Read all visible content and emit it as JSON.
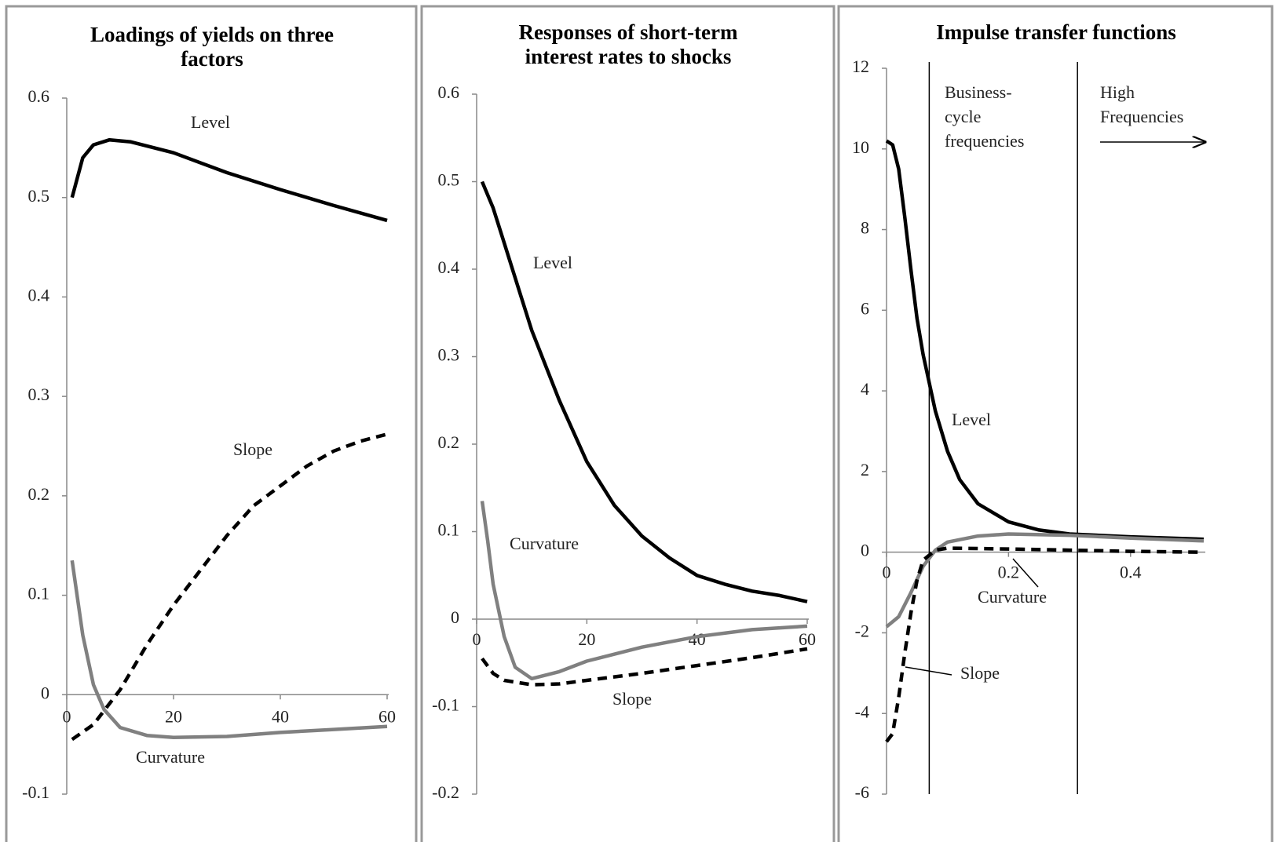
{
  "chart_data": [
    {
      "type": "line",
      "title": "Loadings of yields on three factors",
      "xlim": [
        0,
        60
      ],
      "xticks": [
        0,
        20,
        40,
        60
      ],
      "ylim": [
        -0.1,
        0.6
      ],
      "yticks": [
        -0.1,
        0,
        0.1,
        0.2,
        0.3,
        0.4,
        0.5,
        0.6
      ],
      "series": [
        {
          "name": "Level",
          "color": "#000000",
          "dashed": false,
          "x": [
            1,
            3,
            5,
            8,
            12,
            20,
            30,
            40,
            50,
            60
          ],
          "values": [
            0.5,
            0.54,
            0.553,
            0.558,
            0.556,
            0.545,
            0.525,
            0.508,
            0.492,
            0.477
          ]
        },
        {
          "name": "Slope",
          "color": "#000000",
          "dashed": true,
          "x": [
            1,
            5,
            10,
            15,
            20,
            25,
            30,
            35,
            40,
            45,
            50,
            55,
            60
          ],
          "values": [
            -0.045,
            -0.03,
            0.005,
            0.05,
            0.09,
            0.125,
            0.16,
            0.19,
            0.21,
            0.23,
            0.245,
            0.255,
            0.262
          ]
        },
        {
          "name": "Curvature",
          "color": "#808080",
          "dashed": false,
          "x": [
            1,
            3,
            5,
            7,
            10,
            15,
            20,
            30,
            40,
            50,
            60
          ],
          "values": [
            0.135,
            0.06,
            0.01,
            -0.015,
            -0.033,
            -0.041,
            -0.043,
            -0.042,
            -0.038,
            -0.035,
            -0.032
          ]
        }
      ]
    },
    {
      "type": "line",
      "title": "Responses of short-term interest rates to shocks",
      "xlim": [
        0,
        60
      ],
      "xticks": [
        0,
        20,
        40,
        60
      ],
      "ylim": [
        -0.2,
        0.6
      ],
      "yticks": [
        -0.2,
        -0.1,
        0,
        0.1,
        0.2,
        0.3,
        0.4,
        0.5,
        0.6
      ],
      "series": [
        {
          "name": "Level",
          "color": "#000000",
          "dashed": false,
          "x": [
            1,
            3,
            5,
            8,
            10,
            15,
            20,
            25,
            30,
            35,
            40,
            45,
            50,
            55,
            60
          ],
          "values": [
            0.5,
            0.47,
            0.43,
            0.37,
            0.33,
            0.25,
            0.18,
            0.13,
            0.095,
            0.07,
            0.05,
            0.04,
            0.032,
            0.027,
            0.02
          ]
        },
        {
          "name": "Curvature",
          "color": "#808080",
          "dashed": false,
          "x": [
            1,
            2,
            3,
            5,
            7,
            10,
            15,
            20,
            30,
            40,
            50,
            60
          ],
          "values": [
            0.135,
            0.09,
            0.04,
            -0.02,
            -0.055,
            -0.068,
            -0.06,
            -0.048,
            -0.032,
            -0.02,
            -0.012,
            -0.008
          ]
        },
        {
          "name": "Slope",
          "color": "#000000",
          "dashed": true,
          "x": [
            1,
            3,
            5,
            10,
            15,
            20,
            30,
            40,
            50,
            60
          ],
          "values": [
            -0.045,
            -0.062,
            -0.07,
            -0.075,
            -0.074,
            -0.07,
            -0.062,
            -0.053,
            -0.044,
            -0.034
          ]
        }
      ]
    },
    {
      "type": "line",
      "title": "Impulse transfer functions",
      "xlim": [
        0,
        0.52
      ],
      "xticks": [
        0,
        0.2,
        0.4
      ],
      "ylim": [
        -6,
        12
      ],
      "yticks": [
        -6,
        -4,
        -2,
        0,
        2,
        4,
        6,
        8,
        10,
        12
      ],
      "vlines": [
        0.07,
        0.313
      ],
      "annotations": [
        [
          "Business-",
          "cycle",
          "frequencies"
        ],
        [
          "High",
          "Frequencies"
        ]
      ],
      "series": [
        {
          "name": "Level",
          "color": "#000000",
          "dashed": false,
          "x": [
            0,
            0.01,
            0.02,
            0.03,
            0.04,
            0.05,
            0.06,
            0.07,
            0.08,
            0.1,
            0.12,
            0.15,
            0.2,
            0.25,
            0.3,
            0.4,
            0.52
          ],
          "values": [
            10.2,
            10.1,
            9.5,
            8.3,
            7.0,
            5.8,
            4.9,
            4.2,
            3.5,
            2.5,
            1.8,
            1.2,
            0.75,
            0.55,
            0.45,
            0.38,
            0.32
          ]
        },
        {
          "name": "Curvature",
          "color": "#808080",
          "dashed": false,
          "x": [
            0,
            0.02,
            0.04,
            0.06,
            0.08,
            0.1,
            0.15,
            0.2,
            0.3,
            0.4,
            0.52
          ],
          "values": [
            -1.85,
            -1.6,
            -1.0,
            -0.35,
            0.05,
            0.25,
            0.4,
            0.45,
            0.42,
            0.35,
            0.28
          ]
        },
        {
          "name": "Slope",
          "color": "#000000",
          "dashed": true,
          "x": [
            0,
            0.01,
            0.02,
            0.03,
            0.04,
            0.05,
            0.06,
            0.08,
            0.1,
            0.2,
            0.3,
            0.4,
            0.52
          ],
          "values": [
            -4.7,
            -4.5,
            -3.6,
            -2.5,
            -1.5,
            -0.7,
            -0.2,
            0.05,
            0.1,
            0.08,
            0.05,
            0.02,
            0.0
          ]
        }
      ]
    }
  ]
}
